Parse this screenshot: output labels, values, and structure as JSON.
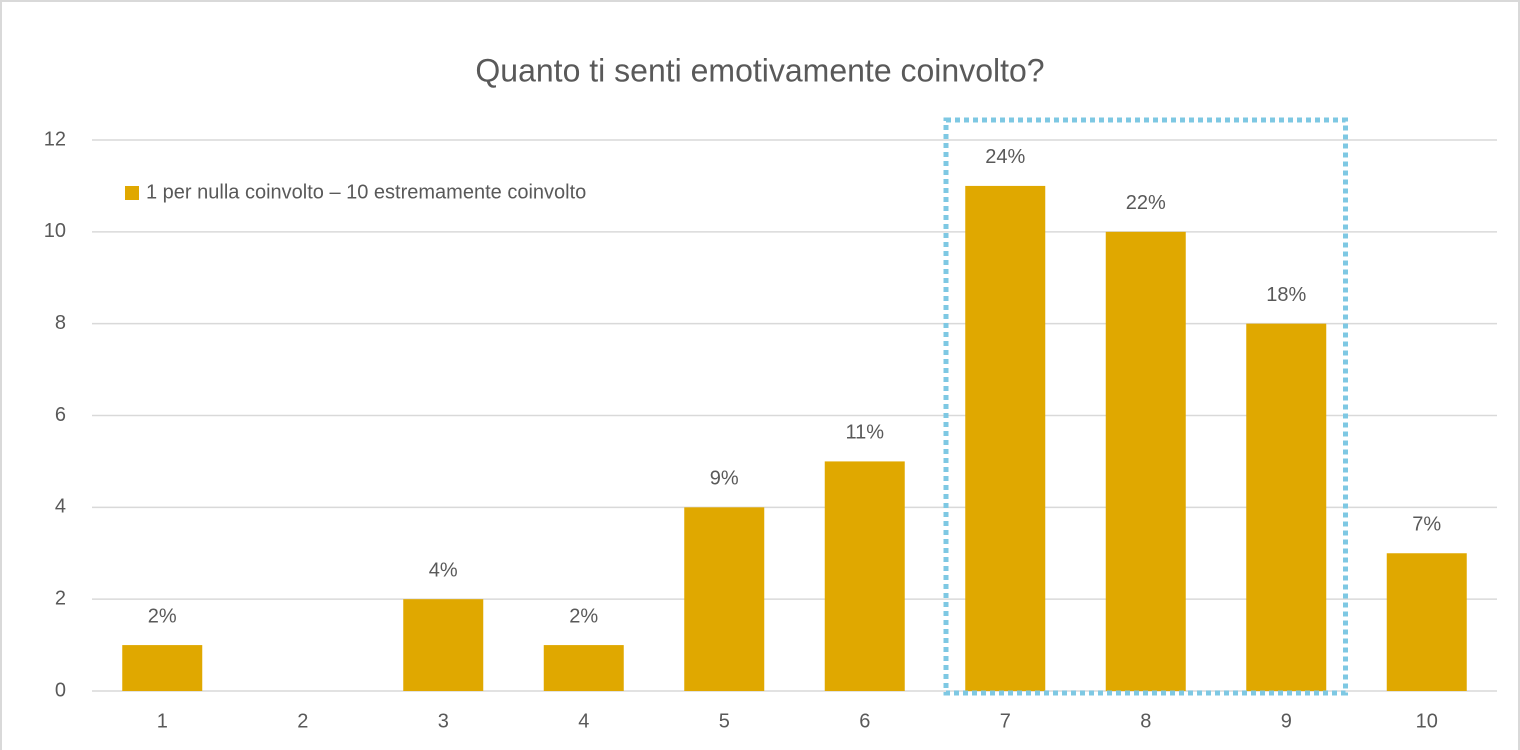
{
  "chart_data": {
    "type": "bar",
    "title": "Quanto ti senti emotivamente coinvolto?",
    "categories": [
      "1",
      "2",
      "3",
      "4",
      "5",
      "6",
      "7",
      "8",
      "9",
      "10"
    ],
    "series": [
      {
        "name": "1 per nulla coinvolto – 10 estremamente coinvolto",
        "color": "#e0a800",
        "values": [
          1,
          0,
          2,
          1,
          4,
          5,
          11,
          10,
          8,
          3
        ]
      }
    ],
    "data_labels": [
      "2%",
      null,
      "4%",
      "2%",
      "9%",
      "11%",
      "24%",
      "22%",
      "18%",
      "7%"
    ],
    "ylim": [
      0,
      12
    ],
    "yticks": [
      0,
      2,
      4,
      6,
      8,
      10,
      12
    ],
    "grid": true,
    "legend": "top-left",
    "highlight": {
      "from": 6,
      "to": 8,
      "color": "#7ec8e3"
    }
  }
}
